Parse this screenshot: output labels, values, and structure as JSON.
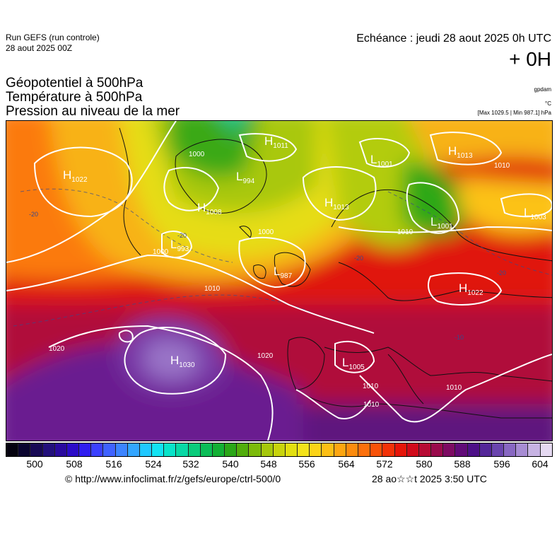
{
  "header": {
    "run_name": "Run GEFS (run controle)",
    "run_date": "28 aout 2025 00Z",
    "valid_time": "Echéance : jeudi 28 aout 2025 0h UTC",
    "lead_time": "+ 0H"
  },
  "titles": {
    "line1": "Géopotentiel à 500hPa",
    "line2": "Température à 500hPa",
    "line3": "Pression au niveau de la mer"
  },
  "units": {
    "geopotential": "gpdam",
    "temperature": "°C",
    "extremes": "[Max 1029.5 | Min 987.1] hPa"
  },
  "legend": {
    "ticks": [
      "500",
      "508",
      "516",
      "524",
      "532",
      "540",
      "548",
      "556",
      "564",
      "572",
      "580",
      "588",
      "596",
      "604"
    ],
    "colors": [
      "#05020f",
      "#0b0530",
      "#180a55",
      "#23107c",
      "#2a0a9e",
      "#2c0cc8",
      "#2f1cf0",
      "#3b40ff",
      "#3f62ff",
      "#3c84ff",
      "#33a6ff",
      "#1fc8ff",
      "#12e3f3",
      "#08e3c9",
      "#07d8a5",
      "#09cc7b",
      "#0bbd57",
      "#12b034",
      "#2aa717",
      "#51ad0b",
      "#7cbb0a",
      "#a6c80b",
      "#c8d40c",
      "#e2df10",
      "#f3e31a",
      "#fbd418",
      "#fcbf15",
      "#fda611",
      "#fd8c0e",
      "#fc700c",
      "#f85209",
      "#f33208",
      "#e61509",
      "#d10a1a",
      "#b70a33",
      "#9a0a4c",
      "#7d0a63",
      "#610a78",
      "#4d1088",
      "#542699",
      "#6a44ae",
      "#8867c2",
      "#a78cd3",
      "#c7b3e3",
      "#e5d9f1"
    ],
    "credit": "© http://www.infoclimat.fr/z/gefs/europe/ctrl-500/0",
    "issued": "28 ao☆☆t 2025  3:50 UTC"
  },
  "map": {
    "pressure_centers": [
      {
        "type": "H",
        "value": "1022"
      },
      {
        "type": "H",
        "value": "1011"
      },
      {
        "type": "L",
        "value": "994"
      },
      {
        "type": "H",
        "value": "1008"
      },
      {
        "type": "L",
        "value": "993"
      },
      {
        "type": "L",
        "value": "987"
      },
      {
        "type": "H",
        "value": "1013"
      },
      {
        "type": "L",
        "value": "1001"
      },
      {
        "type": "L",
        "value": "1001"
      },
      {
        "type": "H",
        "value": "1013"
      },
      {
        "type": "L",
        "value": "1003"
      },
      {
        "type": "H",
        "value": "1022"
      },
      {
        "type": "H",
        "value": "1030"
      },
      {
        "type": "L",
        "value": "1005"
      }
    ],
    "isobar_labels": [
      "1000",
      "1000",
      "1000",
      "1010",
      "1010",
      "1010",
      "1010",
      "1010",
      "1020",
      "1020",
      "1010"
    ],
    "temperature_labels": [
      "-20",
      "-20",
      "-20",
      "-20",
      "-10"
    ]
  }
}
